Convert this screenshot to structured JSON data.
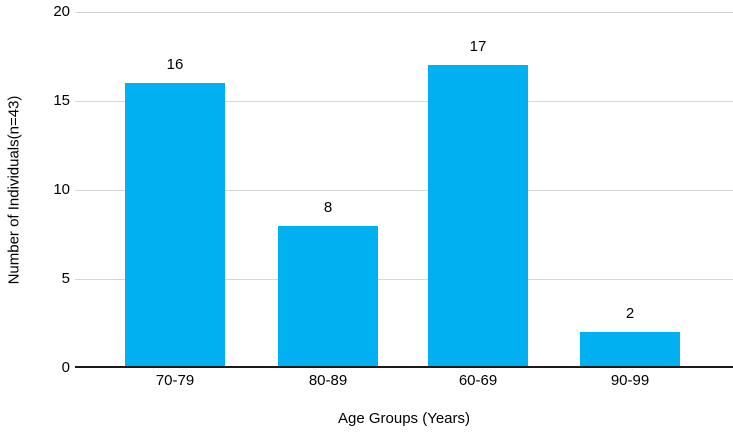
{
  "chart_data": {
    "type": "bar",
    "categories": [
      "70-79",
      "80-89",
      "60-69",
      "90-99"
    ],
    "values": [
      16,
      8,
      17,
      2
    ],
    "bar_labels": [
      "16",
      "8",
      "17",
      "2"
    ],
    "title": "",
    "xlabel": "Age Groups (Years)",
    "ylabel": "Number of Individuals(n=43)",
    "ylim": [
      0,
      20
    ],
    "yticks": [
      0,
      5,
      10,
      15,
      20
    ],
    "grid": true,
    "legend": "none",
    "colors": {
      "bar": "#00b0f0",
      "gridline": "#d6d6d6",
      "axis_line": "#1a1a1a",
      "text": "#000000",
      "background": "#ffffff"
    }
  }
}
